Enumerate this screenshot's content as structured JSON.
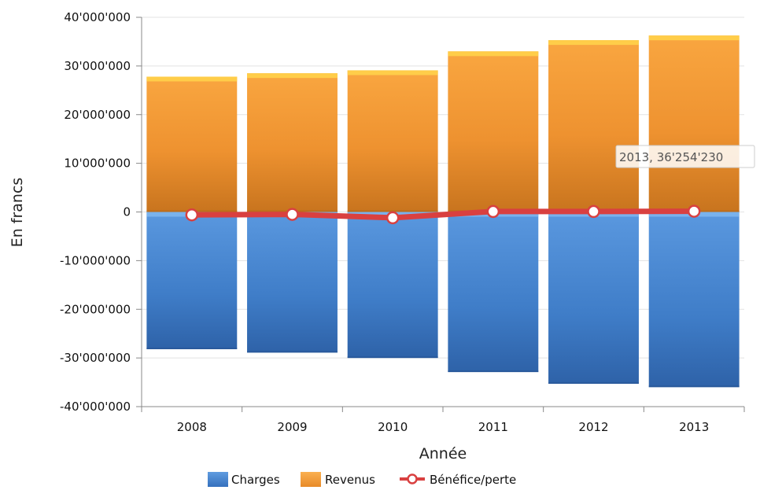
{
  "chart_data": {
    "type": "bar",
    "categories": [
      "2008",
      "2009",
      "2010",
      "2011",
      "2012",
      "2013"
    ],
    "series": [
      {
        "name": "Charges",
        "kind": "bar",
        "color": "#4a86d0",
        "values": [
          -28200000,
          -28900000,
          -30000000,
          -32900000,
          -35300000,
          -36000000
        ]
      },
      {
        "name": "Revenus",
        "kind": "bar",
        "color": "#f29a32",
        "values": [
          27800000,
          28500000,
          29100000,
          33000000,
          35300000,
          36254230
        ]
      },
      {
        "name": "Bénéfice/perte",
        "kind": "line",
        "color": "#d94040",
        "values": [
          -600000,
          -500000,
          -1200000,
          100000,
          100000,
          150000
        ]
      }
    ],
    "xlabel": "Année",
    "ylabel": "En francs",
    "ylim": [
      -40000000,
      40000000
    ],
    "yticks": [
      {
        "value": 40000000,
        "label": "40'000'000"
      },
      {
        "value": 30000000,
        "label": "30'000'000"
      },
      {
        "value": 20000000,
        "label": "20'000'000"
      },
      {
        "value": 10000000,
        "label": "10'000'000"
      },
      {
        "value": 0,
        "label": "0"
      },
      {
        "value": -10000000,
        "label": "-10'000'000"
      },
      {
        "value": -20000000,
        "label": "-20'000'000"
      },
      {
        "value": -30000000,
        "label": "-30'000'000"
      },
      {
        "value": -40000000,
        "label": "-40'000'000"
      }
    ],
    "grid": true,
    "legend_position": "bottom",
    "tooltip": {
      "text": "2013, 36'254'230",
      "series": "Revenus",
      "category": "2013"
    }
  }
}
